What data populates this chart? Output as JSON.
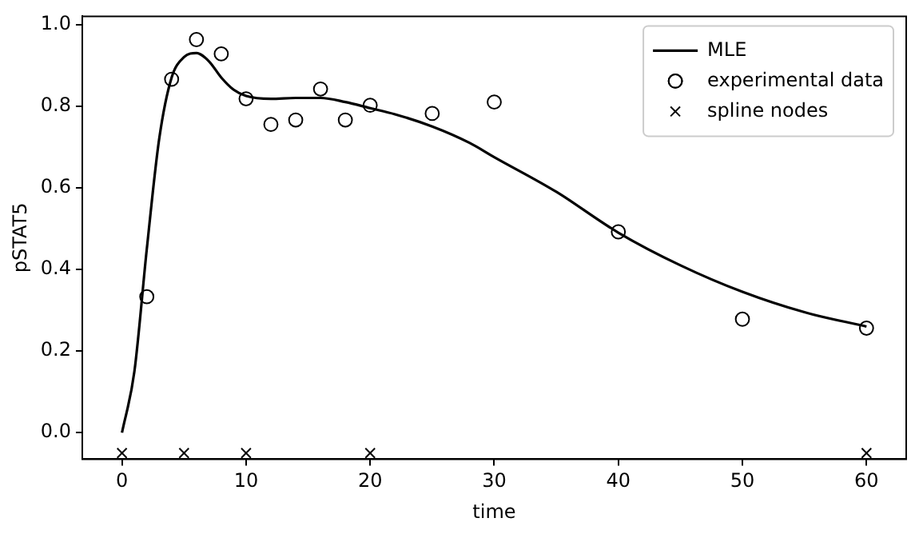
{
  "chart_data": {
    "type": "scatter",
    "xlabel": "time",
    "ylabel": "pSTAT5",
    "xlim": [
      -3.2,
      63.2
    ],
    "ylim": [
      -0.065,
      1.02
    ],
    "xticks": [
      0,
      10,
      20,
      30,
      40,
      50,
      60
    ],
    "yticks": [
      {
        "value": 0,
        "label": "0.0"
      },
      {
        "value": 0.2,
        "label": "0.2"
      },
      {
        "value": 0.4,
        "label": "0.4"
      },
      {
        "value": 0.6,
        "label": "0.6"
      },
      {
        "value": 0.8,
        "label": "0.8"
      },
      {
        "value": 1,
        "label": "1.0"
      }
    ],
    "grid": false,
    "legend": "top right",
    "series": [
      {
        "name": "MLE",
        "type": "line",
        "color": "#000000",
        "marker": "none",
        "line_style": "solid",
        "x": [
          0,
          1,
          2,
          3,
          4,
          5,
          6,
          7,
          8,
          9,
          10,
          12,
          14,
          16,
          18,
          20,
          22,
          25,
          28,
          30,
          35,
          40,
          45,
          50,
          55,
          60
        ],
        "values": [
          0,
          0.15,
          0.45,
          0.72,
          0.87,
          0.92,
          0.93,
          0.91,
          0.87,
          0.84,
          0.825,
          0.818,
          0.82,
          0.82,
          0.81,
          0.795,
          0.78,
          0.75,
          0.71,
          0.675,
          0.59,
          0.49,
          0.41,
          0.345,
          0.295,
          0.26
        ]
      },
      {
        "name": "experimental data",
        "type": "scatter",
        "color": "#000000",
        "marker": "circle",
        "x": [
          2,
          4,
          6,
          8,
          10,
          12,
          14,
          16,
          18,
          20,
          25,
          30,
          40,
          50,
          60
        ],
        "values": [
          0.333,
          0.866,
          0.963,
          0.928,
          0.818,
          0.755,
          0.766,
          0.842,
          0.766,
          0.802,
          0.782,
          0.81,
          0.492,
          0.278,
          0.256
        ]
      },
      {
        "name": "spline nodes",
        "type": "scatter",
        "color": "#000000",
        "marker": "cross",
        "x": [
          0,
          5,
          10,
          20,
          60
        ],
        "values": [
          -0.05,
          -0.05,
          -0.05,
          -0.05,
          -0.05
        ]
      }
    ]
  }
}
